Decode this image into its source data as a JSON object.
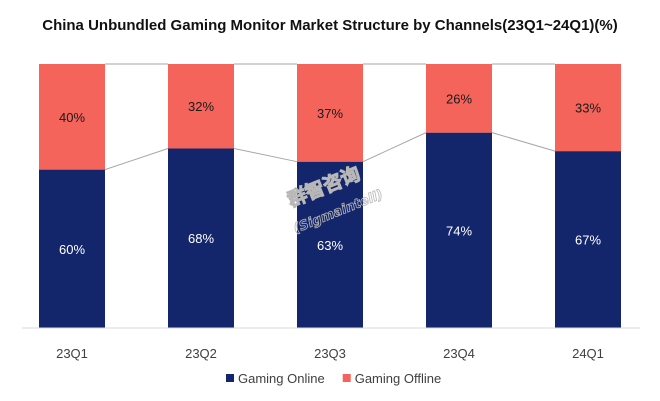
{
  "chart_data": {
    "type": "bar",
    "stacked": true,
    "title": "China Unbundled Gaming Monitor Market Structure by Channels(23Q1~24Q1)(%)",
    "categories": [
      "23Q1",
      "23Q2",
      "23Q3",
      "23Q4",
      "24Q1"
    ],
    "series": [
      {
        "name": "Gaming Online",
        "values": [
          60,
          68,
          63,
          74,
          67
        ],
        "labels": [
          "60%",
          "68%",
          "63%",
          "74%",
          "67%"
        ],
        "color": "#14266b",
        "label_color": "#ffffff"
      },
      {
        "name": "Gaming Offline",
        "values": [
          40,
          32,
          37,
          26,
          33
        ],
        "labels": [
          "40%",
          "32%",
          "37%",
          "26%",
          "33%"
        ],
        "color": "#f4645b",
        "label_color": "#1a1a1a"
      }
    ],
    "ylim": [
      0,
      100
    ],
    "xlabel": "",
    "ylabel": "",
    "grid": false,
    "legend": "bottom-center",
    "connector_lines": true
  },
  "watermark": {
    "line1": "群智咨询",
    "line2": "(Sigmaintell)"
  },
  "colors": {
    "axis": "#d9d9d9",
    "connector": "#a6a6a6",
    "watermark": "#b8b8b8"
  }
}
